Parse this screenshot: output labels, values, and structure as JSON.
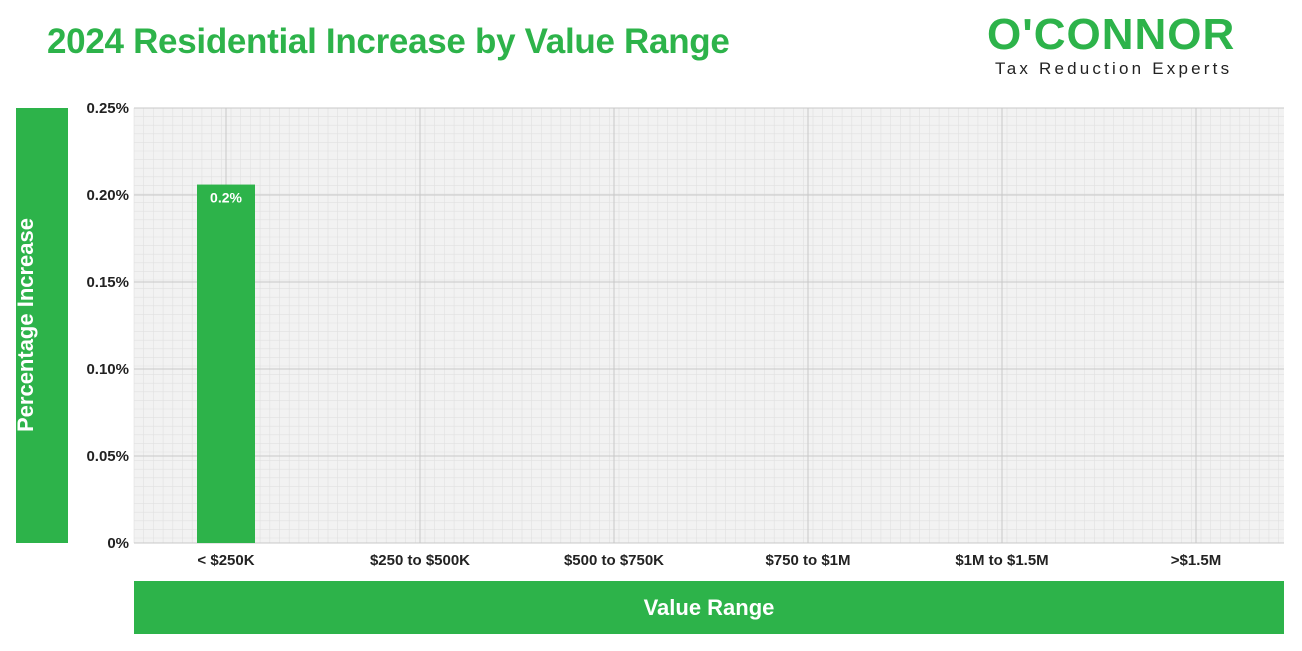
{
  "chart_data": {
    "type": "bar",
    "title": "2024 Residential Increase by Value Range",
    "xlabel": "Value Range",
    "ylabel": "Percentage Increase",
    "categories": [
      "< $250K",
      "$250 to $500K",
      "$500 to $750K",
      "$750 to $1M",
      "$1M to $1.5M",
      ">$1.5M"
    ],
    "values": [
      0.206,
      null,
      null,
      null,
      null,
      null
    ],
    "data_labels": [
      "0.2%",
      "",
      "",
      "",
      "",
      ""
    ],
    "ylim": [
      0,
      0.25
    ],
    "yticks": [
      0,
      0.05,
      0.1,
      0.15,
      0.2,
      0.25
    ],
    "ytick_labels": [
      "0%",
      "0.05%",
      "0.10%",
      "0.15%",
      "0.20%",
      "0.25%"
    ],
    "grid": true,
    "legend": "none",
    "bar_color": "#2db34a"
  },
  "logo": {
    "name": "O'CONNOR",
    "tagline": "Tax Reduction Experts"
  },
  "colors": {
    "accent": "#2db34a",
    "plot_background": "#f2f2f2",
    "grid_major": "#c8c8c8",
    "grid_minor": "#e0e0e0"
  }
}
